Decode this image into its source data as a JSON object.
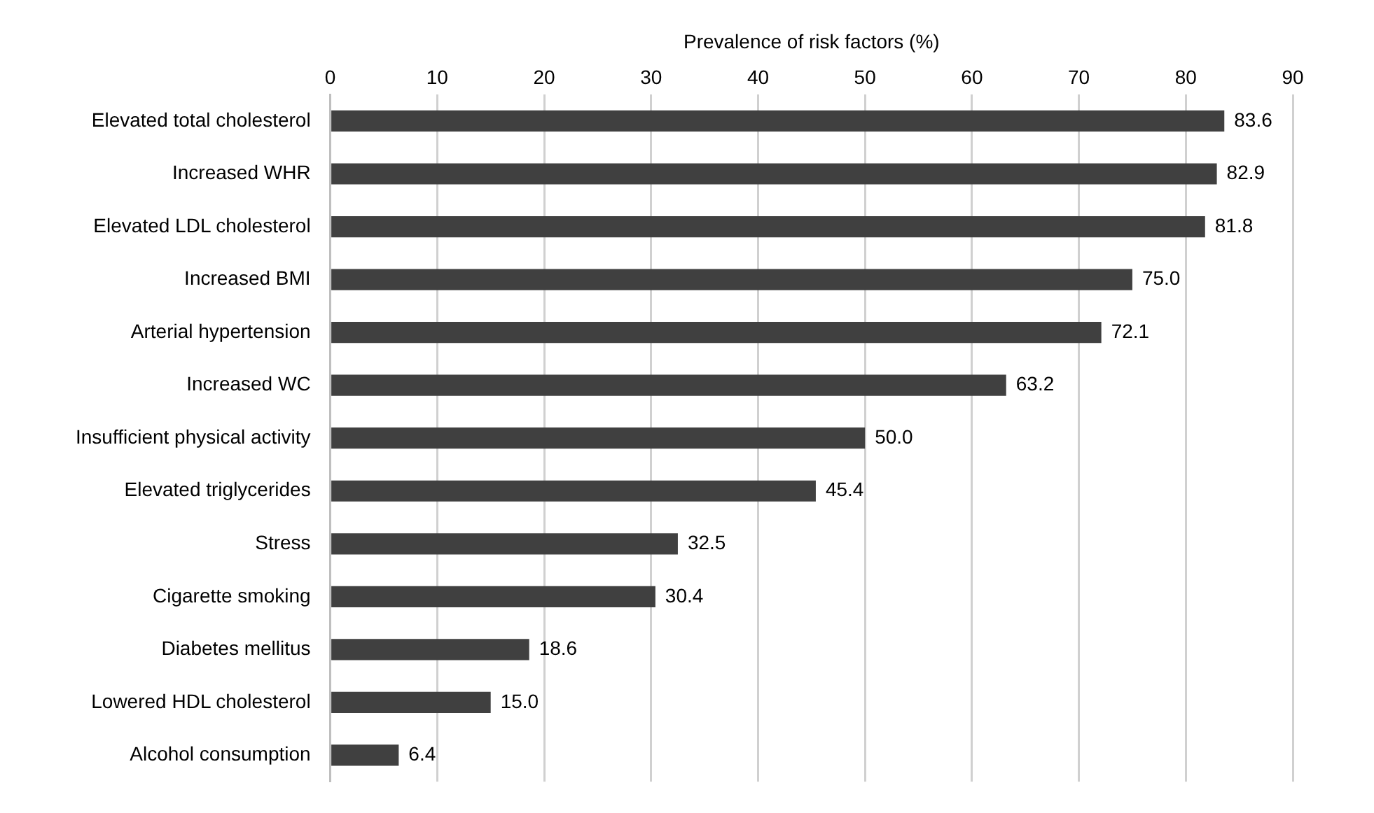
{
  "chart_data": {
    "type": "bar",
    "orientation": "horizontal",
    "xlabel": "Prevalence of risk factors (%)",
    "categories": [
      "Elevated total cholesterol",
      "Increased WHR",
      "Elevated LDL cholesterol",
      "Increased BMI",
      "Arterial hypertension",
      "Increased WC",
      "Insufficient physical activity",
      "Elevated triglycerides",
      "Stress",
      "Cigarette smoking",
      "Diabetes mellitus",
      "Lowered HDL cholesterol",
      "Alcohol consumption"
    ],
    "values": [
      83.6,
      82.9,
      81.8,
      75.0,
      72.1,
      63.2,
      50.0,
      45.4,
      32.5,
      30.4,
      18.6,
      15.0,
      6.4
    ],
    "value_labels": [
      "83.6",
      "82.9",
      "81.8",
      "75.0",
      "72.1",
      "63.2",
      "50.0",
      "45.4",
      "32.5",
      "30.4",
      "18.6",
      "15.0",
      "6.4"
    ],
    "color": "#404040",
    "xlim": [
      0,
      90
    ],
    "xticks": [
      0,
      10,
      20,
      30,
      40,
      50,
      60,
      70,
      80,
      90
    ],
    "grid": "x",
    "legend": false
  }
}
